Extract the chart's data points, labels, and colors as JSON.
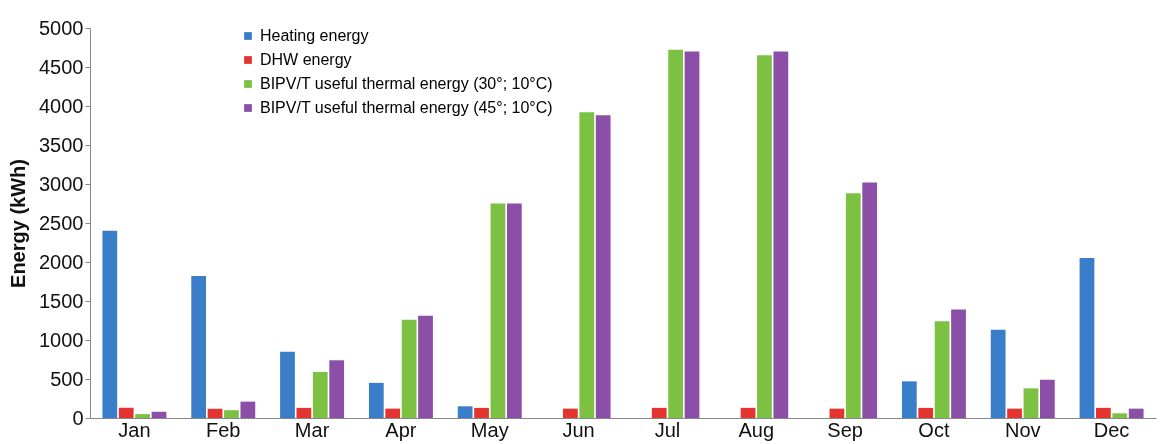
{
  "chart_data": {
    "type": "bar",
    "ylabel": "Energy (kWh)",
    "categories": [
      "Jan",
      "Feb",
      "Mar",
      "Apr",
      "May",
      "Jun",
      "Jul",
      "Aug",
      "Sep",
      "Oct",
      "Nov",
      "Dec"
    ],
    "series": [
      {
        "name": "Heating energy",
        "color": "#3a7dc9",
        "values": [
          2400,
          1820,
          850,
          450,
          150,
          0,
          0,
          0,
          0,
          470,
          1130,
          2050
        ]
      },
      {
        "name": "DHW energy",
        "color": "#e3342f",
        "values": [
          130,
          120,
          130,
          120,
          130,
          120,
          130,
          130,
          120,
          130,
          120,
          130
        ]
      },
      {
        "name": "BIPV/T useful thermal energy (30°; 10°C)",
        "color": "#7dc142",
        "values": [
          50,
          100,
          590,
          1260,
          2750,
          3920,
          4720,
          4650,
          2880,
          1240,
          380,
          60
        ]
      },
      {
        "name": "BIPV/T useful thermal energy (45°; 10°C)",
        "color": "#8b4fa8",
        "values": [
          80,
          210,
          740,
          1310,
          2750,
          3880,
          4700,
          4700,
          3020,
          1390,
          490,
          120
        ]
      }
    ],
    "ylim": [
      0,
      5000
    ],
    "yticks": [
      0,
      500,
      1000,
      1500,
      2000,
      2500,
      3000,
      3500,
      4000,
      4500,
      5000
    ],
    "grid": false,
    "legend": "top left"
  }
}
